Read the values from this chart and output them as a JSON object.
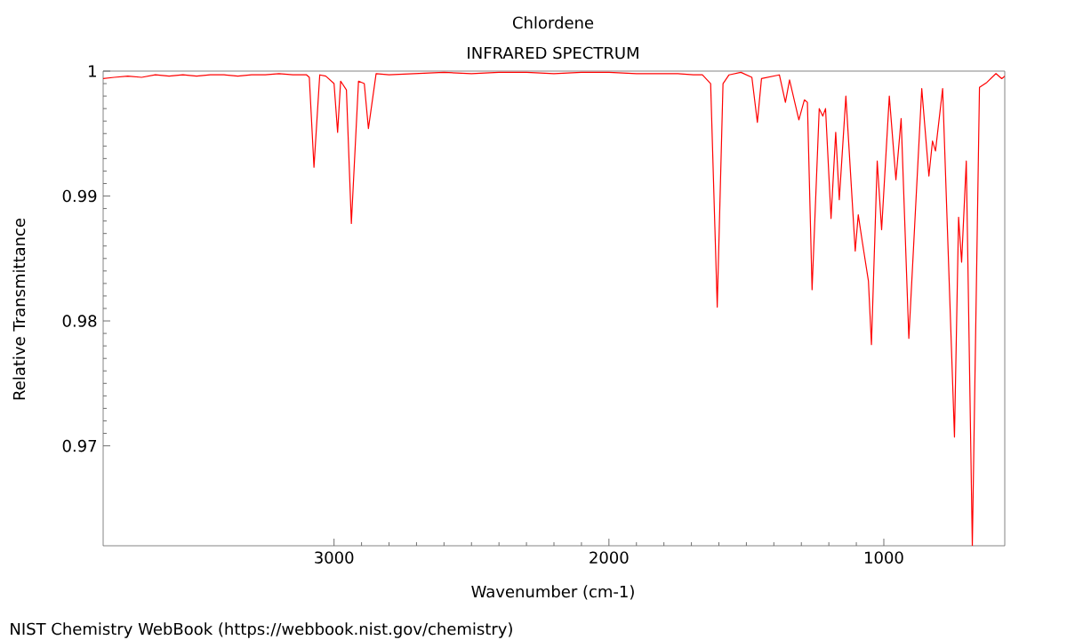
{
  "chart_data": {
    "type": "line",
    "title": "Chlordene",
    "subtitle": "INFRARED SPECTRUM",
    "xlabel": "Wavenumber (cm-1)",
    "ylabel": "Relative Transmittance",
    "annotations": [
      "NIST Chemistry WebBook (https://webbook.nist.gov/chemistry)"
    ],
    "xlim": [
      3840,
      560
    ],
    "ylim": [
      0.962,
      1.0
    ],
    "xticks": [
      3000,
      2000,
      1000
    ],
    "yticks": [
      0.97,
      0.98,
      0.99,
      1
    ],
    "marker": "none",
    "line_style": "solid",
    "series": [
      {
        "color": "#ff0000",
        "x": [
          3840,
          3800,
          3750,
          3700,
          3650,
          3600,
          3550,
          3500,
          3450,
          3400,
          3350,
          3300,
          3250,
          3200,
          3150,
          3100,
          3090,
          3073,
          3052,
          3030,
          3000,
          2987,
          2976,
          2955,
          2937,
          2911,
          2890,
          2875,
          2847,
          2800,
          2700,
          2600,
          2500,
          2400,
          2300,
          2200,
          2100,
          2000,
          1900,
          1800,
          1750,
          1693,
          1660,
          1630,
          1606,
          1585,
          1563,
          1520,
          1480,
          1460,
          1445,
          1380,
          1358,
          1343,
          1309,
          1289,
          1278,
          1261,
          1235,
          1222,
          1212,
          1192,
          1175,
          1162,
          1138,
          1104,
          1093,
          1078,
          1056,
          1045,
          1024,
          1008,
          980,
          956,
          937,
          909,
          862,
          836,
          823,
          812,
          786,
          743,
          728,
          717,
          700,
          678,
          652,
          625,
          592,
          571,
          560
        ],
        "values": [
          0.9994,
          0.9995,
          0.9996,
          0.9995,
          0.9997,
          0.9996,
          0.9997,
          0.9996,
          0.9997,
          0.9997,
          0.9996,
          0.9997,
          0.9997,
          0.9998,
          0.9997,
          0.9997,
          0.9995,
          0.9923,
          0.9997,
          0.9996,
          0.999,
          0.9951,
          0.9992,
          0.9985,
          0.9878,
          0.9992,
          0.999,
          0.9954,
          0.9998,
          0.9997,
          0.9998,
          0.9999,
          0.9998,
          0.9999,
          0.9999,
          0.9998,
          0.9999,
          0.9999,
          0.9998,
          0.9998,
          0.9998,
          0.9997,
          0.9997,
          0.999,
          0.9811,
          0.999,
          0.9997,
          0.9999,
          0.9995,
          0.9959,
          0.9994,
          0.9997,
          0.9975,
          0.9993,
          0.9961,
          0.9977,
          0.9975,
          0.9825,
          0.997,
          0.9964,
          0.997,
          0.9882,
          0.9951,
          0.9897,
          0.998,
          0.9856,
          0.9885,
          0.9863,
          0.9832,
          0.9781,
          0.9928,
          0.9873,
          0.998,
          0.9913,
          0.9962,
          0.9786,
          0.9986,
          0.9916,
          0.9944,
          0.9936,
          0.9986,
          0.9707,
          0.9883,
          0.9847,
          0.9928,
          0.962,
          0.9987,
          0.9991,
          0.9998,
          0.9994,
          0.9996
        ]
      }
    ]
  }
}
